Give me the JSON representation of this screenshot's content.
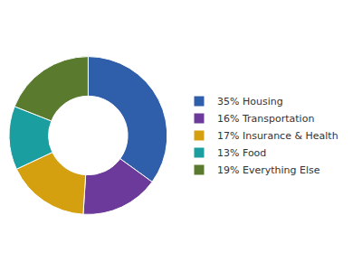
{
  "chart_data": {
    "type": "donut",
    "categories": [
      "35% Housing",
      "16% Transportation",
      "17% Insurance & Health",
      "13% Food",
      "19% Everything Else"
    ],
    "values": [
      35,
      16,
      17,
      13,
      19
    ],
    "colors": [
      "#2f5faa",
      "#6b3a9a",
      "#d4a010",
      "#1a9ea0",
      "#5a7a2e"
    ],
    "legend": "right"
  }
}
